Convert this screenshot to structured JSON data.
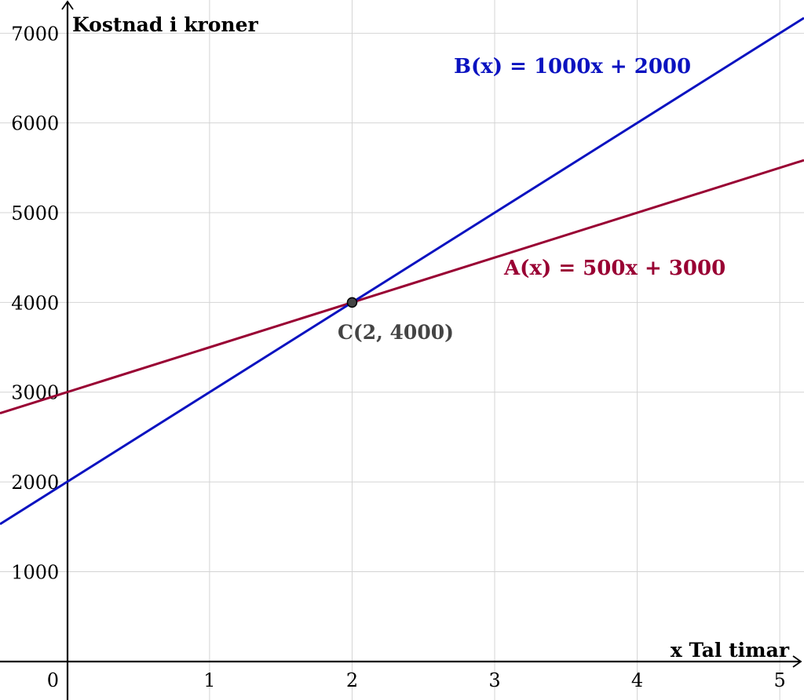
{
  "chart_data": {
    "type": "line",
    "title": "",
    "xlabel": "x Tal timar",
    "ylabel": "Kostnad i kroner",
    "xlim": [
      -0.47,
      5.17
    ],
    "ylim": [
      -430,
      7370
    ],
    "grid": true,
    "x_ticks": [
      "0",
      "1",
      "2",
      "3",
      "4",
      "5"
    ],
    "y_ticks": [
      "1000",
      "2000",
      "3000",
      "4000",
      "5000",
      "6000",
      "7000"
    ],
    "series": [
      {
        "name": "A(x) = 500x + 3000",
        "label": "A(x) = 500x + 3000",
        "color": "#990033",
        "slope": 500,
        "intercept": 3000,
        "x": [
          -0.47,
          5.17
        ],
        "y": [
          2765,
          5585
        ]
      },
      {
        "name": "B(x) = 1000x + 2000",
        "label": "B(x) = 1000x + 2000",
        "color": "#0a12c0",
        "slope": 1000,
        "intercept": 2000,
        "x": [
          -0.47,
          5.17
        ],
        "y": [
          1530,
          7170
        ]
      }
    ],
    "points": [
      {
        "label": "C(2, 4000)",
        "x": 2,
        "y": 4000,
        "color": "#444444"
      }
    ]
  }
}
